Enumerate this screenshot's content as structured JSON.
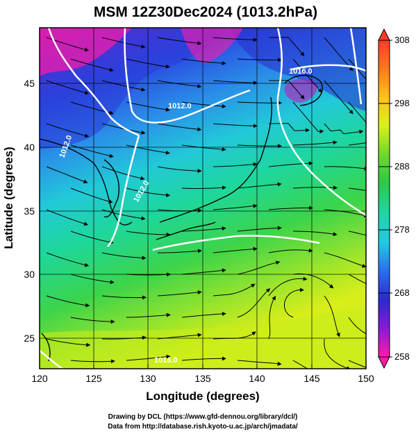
{
  "title": "MSM 12Z30Dec2024 (1013.2hPa)",
  "xlabel": "Longitude (degrees)",
  "ylabel": "Latitude  (degrees)",
  "x_ticks": [
    "120",
    "125",
    "130",
    "135",
    "140",
    "145",
    "150"
  ],
  "y_ticks": [
    "25",
    "30",
    "35",
    "40",
    "45"
  ],
  "colorbar": {
    "ticks": [
      "308",
      "298",
      "288",
      "278",
      "268",
      "258"
    ],
    "colors": [
      "#ff3a2a",
      "#ff7a1a",
      "#ffc21a",
      "#d8f21a",
      "#6fd92a",
      "#2cc84a",
      "#1ed7a8",
      "#22c9e2",
      "#2a6ef0",
      "#2a2ad0",
      "#8a1ad8",
      "#ff1aa8"
    ]
  },
  "isobars": [
    {
      "label": "1016.0"
    },
    {
      "label": "1012.0"
    },
    {
      "label": "1012.0"
    },
    {
      "label": "1012.0"
    },
    {
      "label": "1016.0"
    }
  ],
  "credit_line1": "Drawing by DCL (https://www.gfd-dennou.org/library/dcl/)",
  "credit_line2": "Data from http://database.rish.kyoto-u.ac.jp/arch/jmadata/"
}
